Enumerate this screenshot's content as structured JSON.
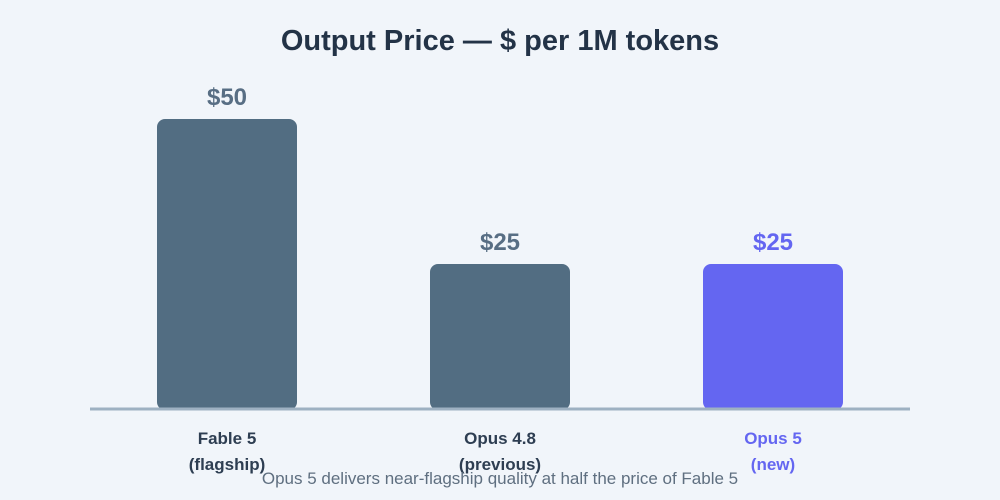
{
  "chart_data": {
    "type": "bar",
    "title": "Output Price — $ per 1M tokens",
    "categories": [
      [
        "Fable 5",
        "(flagship)"
      ],
      [
        "Opus 4.8",
        "(previous)"
      ],
      [
        "Opus 5",
        "(new)"
      ]
    ],
    "values": [
      50,
      25,
      25
    ],
    "value_labels": [
      "$50",
      "$25",
      "$25"
    ],
    "ylim": [
      0,
      50
    ],
    "grid": false,
    "footnote": "Opus 5 delivers near-flagship quality at half the price of Fable 5"
  },
  "colors": {
    "background": "#f1f5fa",
    "bar_default": "#526d82",
    "bar_highlight": "#6466f1",
    "label_default": "#2e3e52",
    "value_default": "#586e84",
    "axis": "#9eb1c2",
    "highlight_index": 2
  }
}
